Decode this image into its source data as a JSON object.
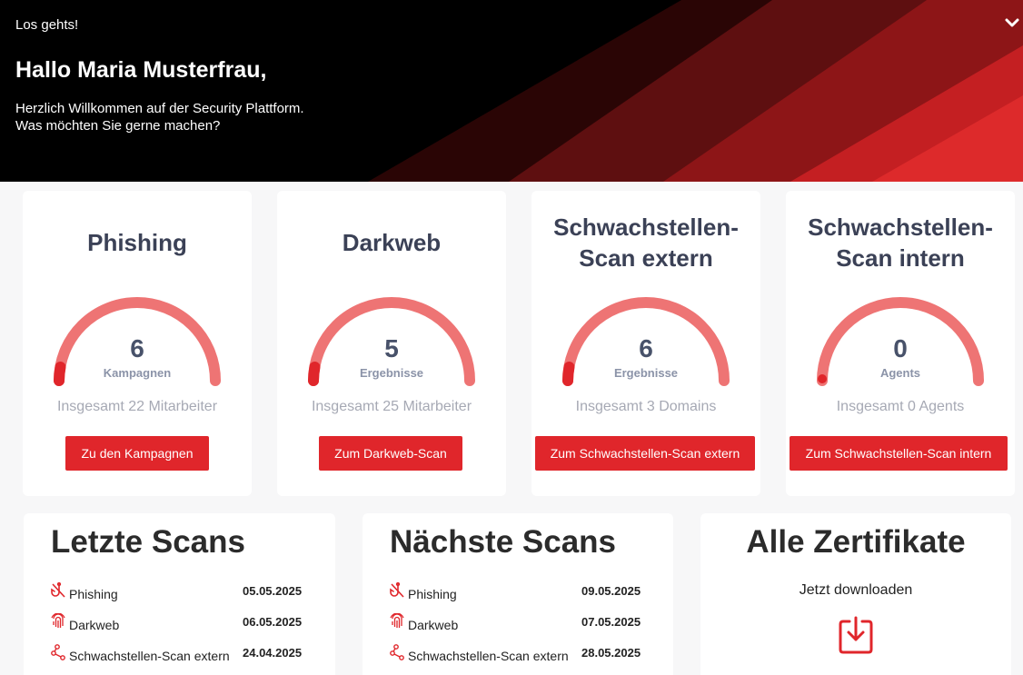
{
  "hero": {
    "kicker": "Los gehts!",
    "title": "Hallo Maria Musterfrau,",
    "line1": "Herzlich Willkommen auf der Security Plattform.",
    "line2": "Was möchten Sie gerne machen?",
    "toggle_icon": "chevron-down-icon"
  },
  "colors": {
    "accent": "#e0262b",
    "gauge_track": "#ee7474",
    "gauge_fill": "#e0262b",
    "title": "#3b4156"
  },
  "stats": [
    {
      "title_lines": [
        "Phishing"
      ],
      "value": "6",
      "unit": "Kampagnen",
      "total": "Insgesamt 22 Mitarbeiter",
      "button": "Zu den Kampagnen"
    },
    {
      "title_lines": [
        "Darkweb"
      ],
      "value": "5",
      "unit": "Ergebnisse",
      "total": "Insgesamt 25 Mitarbeiter",
      "button": "Zum Darkweb-Scan"
    },
    {
      "title_lines": [
        "Schwachstellen-",
        "Scan extern"
      ],
      "value": "6",
      "unit": "Ergebnisse",
      "total": "Insgesamt 3 Domains",
      "button": "Zum Schwachstellen-Scan extern"
    },
    {
      "title_lines": [
        "Schwachstellen-",
        "Scan intern"
      ],
      "value": "0",
      "unit": "Agents",
      "total": "Insgesamt 0 Agents",
      "button": "Zum Schwachstellen-Scan intern"
    }
  ],
  "last_scans": {
    "title": "Letzte Scans",
    "items": [
      {
        "label": "Phishing",
        "date": "05.05.2025",
        "icon": "phishing-hook-icon"
      },
      {
        "label": "Darkweb",
        "date": "06.05.2025",
        "icon": "fingerprint-icon"
      },
      {
        "label": "Schwachstellen-Scan extern",
        "date": "24.04.2025",
        "icon": "share-nodes-icon"
      }
    ]
  },
  "next_scans": {
    "title": "Nächste Scans",
    "items": [
      {
        "label": "Phishing",
        "date": "09.05.2025",
        "icon": "phishing-hook-icon"
      },
      {
        "label": "Darkweb",
        "date": "07.05.2025",
        "icon": "fingerprint-icon"
      },
      {
        "label": "Schwachstellen-Scan extern",
        "date": "28.05.2025",
        "icon": "share-nodes-icon"
      }
    ]
  },
  "certificates": {
    "title": "Alle Zertifikate",
    "subtitle": "Jetzt downloaden",
    "icon": "download-icon"
  }
}
